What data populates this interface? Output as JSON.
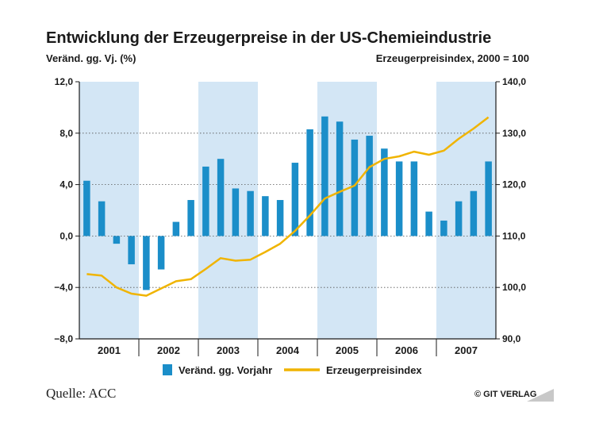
{
  "chart_data": {
    "type": "bar+line",
    "title": "Entwicklung der Erzeugerpreise in der US-Chemieindustrie",
    "ylabel_left": "Veränd. gg. Vj. (%)",
    "ylabel_right": "Erzeugerpreisindex, 2000 = 100",
    "ylim_left": [
      -8,
      12
    ],
    "ylim_right": [
      90,
      140
    ],
    "yticks_left": [
      "12,0",
      "8,0",
      "4,0",
      "0,0",
      "−4,0",
      "−8,0"
    ],
    "yticks_right": [
      "140,0",
      "130,0",
      "120,0",
      "110,0",
      "100,0",
      "90,0"
    ],
    "years": [
      "2001",
      "2002",
      "2003",
      "2004",
      "2005",
      "2006",
      "2007"
    ],
    "shaded_years": [
      "2001",
      "2003",
      "2005",
      "2007"
    ],
    "x": [
      "2001 Q1",
      "2001 Q2",
      "2001 Q3",
      "2001 Q4",
      "2002 Q1",
      "2002 Q2",
      "2002 Q3",
      "2002 Q4",
      "2003 Q1",
      "2003 Q2",
      "2003 Q3",
      "2003 Q4",
      "2004 Q1",
      "2004 Q2",
      "2004 Q3",
      "2004 Q4",
      "2005 Q1",
      "2005 Q2",
      "2005 Q3",
      "2005 Q4",
      "2006 Q1",
      "2006 Q2",
      "2006 Q3",
      "2006 Q4",
      "2007 Q1",
      "2007 Q2",
      "2007 Q3",
      "2007 Q4"
    ],
    "series": [
      {
        "name": "Veränd. gg. Vorjahr",
        "kind": "bar",
        "axis": "left",
        "color": "#1b8ec9",
        "values": [
          4.3,
          2.7,
          -0.6,
          -2.2,
          -4.2,
          -2.6,
          1.1,
          2.8,
          5.4,
          6.0,
          3.7,
          3.5,
          3.1,
          2.8,
          5.7,
          8.3,
          9.3,
          8.9,
          7.5,
          7.8,
          6.8,
          5.8,
          5.8,
          1.9,
          1.2,
          2.7,
          3.5,
          5.8
        ]
      },
      {
        "name": "Erzeugerpreisindex",
        "kind": "line",
        "axis": "right",
        "color": "#f0b400",
        "values": [
          102.6,
          102.3,
          100.0,
          98.8,
          98.4,
          99.8,
          101.2,
          101.6,
          103.6,
          105.7,
          105.2,
          105.4,
          106.9,
          108.5,
          111.0,
          114.0,
          117.3,
          118.6,
          119.8,
          123.4,
          125.0,
          125.5,
          126.4,
          125.8,
          126.6,
          128.9,
          130.9,
          133.1
        ]
      }
    ],
    "legend": [
      "Veränd. gg. Vorjahr",
      "Erzeugerpreisindex"
    ],
    "source": "Quelle: ACC",
    "brand": "© GIT VERLAG"
  },
  "colors": {
    "bar": "#1b8ec9",
    "line": "#f0b400",
    "shade": "#d3e6f5",
    "axis": "#1a1a1a"
  }
}
